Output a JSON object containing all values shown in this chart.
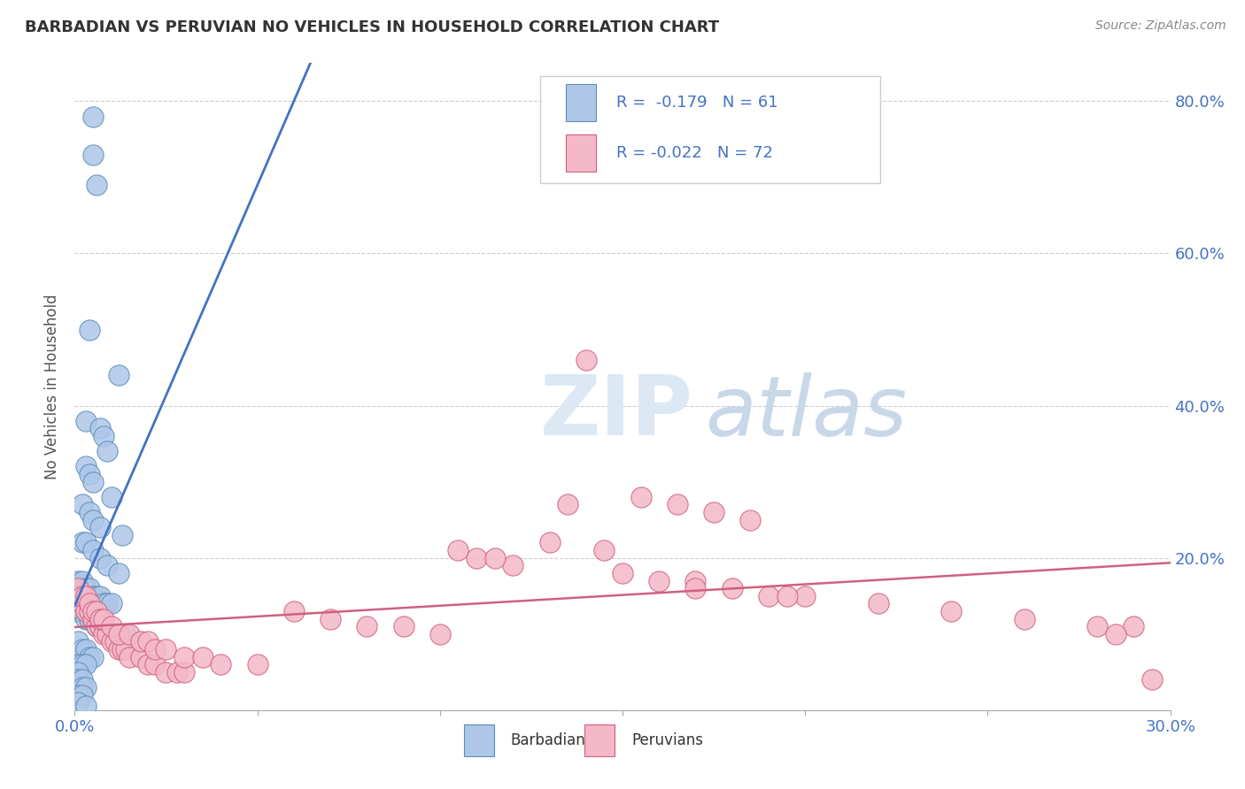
{
  "title": "BARBADIAN VS PERUVIAN NO VEHICLES IN HOUSEHOLD CORRELATION CHART",
  "source_text": "Source: ZipAtlas.com",
  "ylabel": "No Vehicles in Household",
  "barbadian_color": "#aec6e8",
  "barbadian_edge": "#5b8db8",
  "peruvian_color": "#f4b8c8",
  "peruvian_edge": "#d06080",
  "trend_barb_color": "#4472c4",
  "trend_peru_color": "#d06080",
  "legend_text_color": "#4472c4",
  "title_color": "#333333",
  "source_color": "#888888",
  "ylabel_color": "#555555",
  "grid_color": "#cccccc",
  "watermark_zip_color": "#dce8f4",
  "watermark_atlas_color": "#c8d8e8",
  "xlim": [
    0.0,
    0.3
  ],
  "ylim": [
    0.0,
    0.85
  ],
  "x_ticks": [
    0.0,
    0.05,
    0.1,
    0.15,
    0.2,
    0.25,
    0.3
  ],
  "y_ticks": [
    0.0,
    0.2,
    0.4,
    0.6,
    0.8
  ],
  "barbadian_x": [
    0.005,
    0.005,
    0.006,
    0.004,
    0.012,
    0.003,
    0.007,
    0.008,
    0.009,
    0.003,
    0.004,
    0.005,
    0.01,
    0.002,
    0.004,
    0.005,
    0.007,
    0.013,
    0.002,
    0.003,
    0.005,
    0.007,
    0.009,
    0.012,
    0.001,
    0.002,
    0.003,
    0.004,
    0.005,
    0.006,
    0.007,
    0.008,
    0.009,
    0.01,
    0.001,
    0.002,
    0.003,
    0.004,
    0.005,
    0.006,
    0.008,
    0.01,
    0.012,
    0.014,
    0.001,
    0.002,
    0.003,
    0.004,
    0.005,
    0.001,
    0.002,
    0.003,
    0.001,
    0.001,
    0.002,
    0.002,
    0.003,
    0.001,
    0.002,
    0.001,
    0.003
  ],
  "barbadian_y": [
    0.78,
    0.73,
    0.69,
    0.5,
    0.44,
    0.38,
    0.37,
    0.36,
    0.34,
    0.32,
    0.31,
    0.3,
    0.28,
    0.27,
    0.26,
    0.25,
    0.24,
    0.23,
    0.22,
    0.22,
    0.21,
    0.2,
    0.19,
    0.18,
    0.17,
    0.17,
    0.16,
    0.16,
    0.15,
    0.15,
    0.15,
    0.14,
    0.14,
    0.14,
    0.13,
    0.13,
    0.12,
    0.12,
    0.12,
    0.11,
    0.11,
    0.1,
    0.1,
    0.1,
    0.09,
    0.08,
    0.08,
    0.07,
    0.07,
    0.06,
    0.06,
    0.06,
    0.05,
    0.04,
    0.04,
    0.03,
    0.03,
    0.02,
    0.02,
    0.01,
    0.005
  ],
  "peruvian_x": [
    0.002,
    0.003,
    0.004,
    0.005,
    0.006,
    0.007,
    0.008,
    0.009,
    0.01,
    0.011,
    0.012,
    0.013,
    0.014,
    0.015,
    0.018,
    0.02,
    0.022,
    0.025,
    0.028,
    0.03,
    0.001,
    0.002,
    0.003,
    0.004,
    0.005,
    0.006,
    0.007,
    0.008,
    0.01,
    0.012,
    0.015,
    0.018,
    0.02,
    0.022,
    0.025,
    0.03,
    0.035,
    0.04,
    0.05,
    0.06,
    0.07,
    0.08,
    0.09,
    0.1,
    0.11,
    0.12,
    0.135,
    0.15,
    0.16,
    0.17,
    0.18,
    0.19,
    0.2,
    0.22,
    0.24,
    0.26,
    0.28,
    0.29,
    0.295,
    0.14,
    0.155,
    0.165,
    0.175,
    0.185,
    0.105,
    0.115,
    0.13,
    0.145,
    0.17,
    0.195,
    0.285
  ],
  "peruvian_y": [
    0.14,
    0.13,
    0.13,
    0.12,
    0.11,
    0.11,
    0.1,
    0.1,
    0.09,
    0.09,
    0.08,
    0.08,
    0.08,
    0.07,
    0.07,
    0.06,
    0.06,
    0.05,
    0.05,
    0.05,
    0.16,
    0.15,
    0.15,
    0.14,
    0.13,
    0.13,
    0.12,
    0.12,
    0.11,
    0.1,
    0.1,
    0.09,
    0.09,
    0.08,
    0.08,
    0.07,
    0.07,
    0.06,
    0.06,
    0.13,
    0.12,
    0.11,
    0.11,
    0.1,
    0.2,
    0.19,
    0.27,
    0.18,
    0.17,
    0.17,
    0.16,
    0.15,
    0.15,
    0.14,
    0.13,
    0.12,
    0.11,
    0.11,
    0.04,
    0.46,
    0.28,
    0.27,
    0.26,
    0.25,
    0.21,
    0.2,
    0.22,
    0.21,
    0.16,
    0.15,
    0.1
  ]
}
